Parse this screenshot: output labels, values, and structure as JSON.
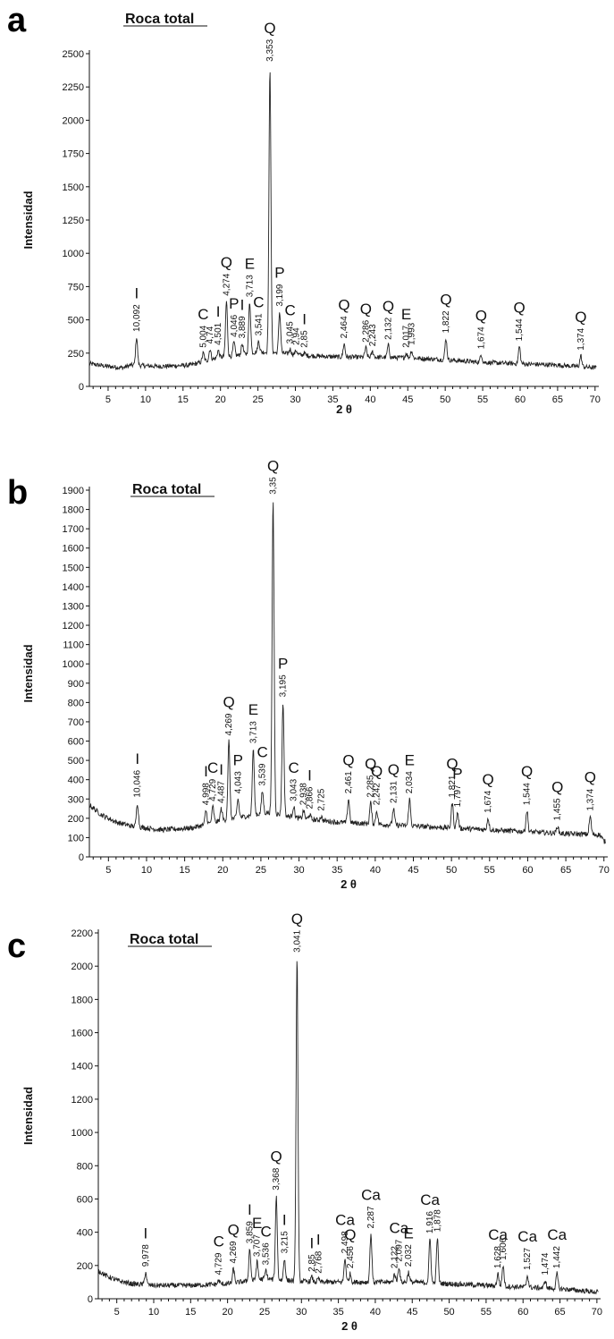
{
  "chart_data": [
    {
      "type": "line",
      "panel_label": "a",
      "title": "Roca total",
      "xlabel": "2 θ",
      "ylabel": "Intensidad",
      "xlim": [
        2.5,
        70.5
      ],
      "ylim": [
        0,
        2500
      ],
      "x_ticks": [
        5,
        10,
        15,
        20,
        25,
        30,
        35,
        40,
        45,
        50,
        55,
        60,
        65,
        70
      ],
      "y_ticks": [
        0,
        250,
        500,
        750,
        1000,
        1250,
        1500,
        1750,
        2000,
        2250,
        2500
      ],
      "baseline": [
        [
          2.5,
          170
        ],
        [
          5,
          150
        ],
        [
          7,
          140
        ],
        [
          8,
          160
        ],
        [
          12,
          150
        ],
        [
          16,
          160
        ],
        [
          18,
          190
        ],
        [
          20,
          220
        ],
        [
          22,
          230
        ],
        [
          25,
          260
        ],
        [
          28,
          250
        ],
        [
          32,
          230
        ],
        [
          36,
          220
        ],
        [
          40,
          220
        ],
        [
          45,
          215
        ],
        [
          50,
          200
        ],
        [
          55,
          180
        ],
        [
          60,
          170
        ],
        [
          65,
          160
        ],
        [
          70,
          140
        ]
      ],
      "peaks": [
        {
          "x": 8.8,
          "y": 370,
          "d": "10,092",
          "m": "I"
        },
        {
          "x": 17.7,
          "y": 250,
          "d": "5,004",
          "m": "C"
        },
        {
          "x": 18.6,
          "y": 280,
          "d": "4,74",
          "m": ""
        },
        {
          "x": 19.7,
          "y": 270,
          "d": "4,501",
          "m": "I"
        },
        {
          "x": 20.8,
          "y": 640,
          "d": "4,274",
          "m": "Q"
        },
        {
          "x": 21.8,
          "y": 330,
          "d": "4,046",
          "m": "P"
        },
        {
          "x": 22.9,
          "y": 320,
          "d": "3,889",
          "m": "I"
        },
        {
          "x": 23.9,
          "y": 630,
          "d": "3,713",
          "m": "E"
        },
        {
          "x": 25.1,
          "y": 340,
          "d": "3,541",
          "m": "C"
        },
        {
          "x": 26.6,
          "y": 2400,
          "d": "3,353",
          "m": "Q"
        },
        {
          "x": 27.9,
          "y": 560,
          "d": "3,199",
          "m": "P"
        },
        {
          "x": 29.3,
          "y": 280,
          "d": "3,045",
          "m": "C"
        },
        {
          "x": 30.1,
          "y": 270,
          "d": "2,94",
          "m": ""
        },
        {
          "x": 31.2,
          "y": 250,
          "d": "2,85",
          "m": "I"
        },
        {
          "x": 36.5,
          "y": 320,
          "d": "2,464",
          "m": "Q"
        },
        {
          "x": 39.4,
          "y": 290,
          "d": "2,286",
          "m": "Q"
        },
        {
          "x": 40.3,
          "y": 260,
          "d": "2,243",
          "m": ""
        },
        {
          "x": 42.4,
          "y": 310,
          "d": "2,132",
          "m": "Q"
        },
        {
          "x": 44.8,
          "y": 250,
          "d": "2,017",
          "m": "E"
        },
        {
          "x": 45.5,
          "y": 270,
          "d": "1,993",
          "m": ""
        },
        {
          "x": 50.1,
          "y": 360,
          "d": "1,822",
          "m": "Q"
        },
        {
          "x": 54.8,
          "y": 240,
          "d": "1,674",
          "m": "Q"
        },
        {
          "x": 59.9,
          "y": 300,
          "d": "1,544",
          "m": "Q"
        },
        {
          "x": 68.1,
          "y": 230,
          "d": "1,374",
          "m": "Q"
        }
      ]
    },
    {
      "type": "line",
      "panel_label": "b",
      "title": "Roca total",
      "xlabel": "2 θ",
      "ylabel": "Intensidad",
      "xlim": [
        2.5,
        70.5
      ],
      "ylim": [
        0,
        1900
      ],
      "x_ticks": [
        5,
        10,
        15,
        20,
        25,
        30,
        35,
        40,
        45,
        50,
        55,
        60,
        65,
        70
      ],
      "y_ticks": [
        0,
        100,
        200,
        300,
        400,
        500,
        600,
        700,
        800,
        900,
        1000,
        1100,
        1200,
        1300,
        1400,
        1500,
        1600,
        1700,
        1800,
        1900
      ],
      "baseline": [
        [
          2.5,
          270
        ],
        [
          4,
          220
        ],
        [
          6,
          180
        ],
        [
          8,
          160
        ],
        [
          12,
          140
        ],
        [
          16,
          150
        ],
        [
          18,
          170
        ],
        [
          20,
          190
        ],
        [
          23,
          210
        ],
        [
          26,
          230
        ],
        [
          30,
          200
        ],
        [
          35,
          180
        ],
        [
          40,
          170
        ],
        [
          45,
          160
        ],
        [
          50,
          150
        ],
        [
          55,
          140
        ],
        [
          60,
          130
        ],
        [
          65,
          120
        ],
        [
          69.5,
          115
        ],
        [
          70,
          80
        ]
      ],
      "peaks": [
        {
          "x": 8.8,
          "y": 280,
          "d": "10,046",
          "m": "I"
        },
        {
          "x": 17.8,
          "y": 240,
          "d": "4,998",
          "m": "I"
        },
        {
          "x": 18.7,
          "y": 260,
          "d": "4,729",
          "m": "C"
        },
        {
          "x": 19.8,
          "y": 250,
          "d": "4,487",
          "m": "I"
        },
        {
          "x": 20.8,
          "y": 600,
          "d": "4,269",
          "m": "Q"
        },
        {
          "x": 22.0,
          "y": 300,
          "d": "4,043",
          "m": "P"
        },
        {
          "x": 24.0,
          "y": 560,
          "d": "3,713",
          "m": "E"
        },
        {
          "x": 25.2,
          "y": 340,
          "d": "3,539",
          "m": "C"
        },
        {
          "x": 26.6,
          "y": 1850,
          "d": "3,35",
          "m": "Q"
        },
        {
          "x": 27.9,
          "y": 800,
          "d": "3,195",
          "m": "P"
        },
        {
          "x": 29.3,
          "y": 260,
          "d": "3,043",
          "m": "C"
        },
        {
          "x": 30.6,
          "y": 240,
          "d": "2,938",
          "m": ""
        },
        {
          "x": 31.4,
          "y": 220,
          "d": "2,866",
          "m": "I"
        },
        {
          "x": 32.9,
          "y": 210,
          "d": "2,725",
          "m": ""
        },
        {
          "x": 36.5,
          "y": 300,
          "d": "2,461",
          "m": "Q"
        },
        {
          "x": 39.4,
          "y": 280,
          "d": "2,285",
          "m": "Q"
        },
        {
          "x": 40.2,
          "y": 240,
          "d": "2,242",
          "m": "Q"
        },
        {
          "x": 42.4,
          "y": 250,
          "d": "2,131",
          "m": "Q"
        },
        {
          "x": 44.5,
          "y": 300,
          "d": "2,034",
          "m": "E"
        },
        {
          "x": 50.1,
          "y": 280,
          "d": "1,821",
          "m": "Q"
        },
        {
          "x": 50.8,
          "y": 230,
          "d": "1,797",
          "m": "P"
        },
        {
          "x": 54.8,
          "y": 200,
          "d": "1,674",
          "m": "Q"
        },
        {
          "x": 59.9,
          "y": 240,
          "d": "1,544",
          "m": "Q"
        },
        {
          "x": 63.9,
          "y": 160,
          "d": "1,455",
          "m": "Q"
        },
        {
          "x": 68.2,
          "y": 210,
          "d": "1,374",
          "m": "Q"
        }
      ]
    },
    {
      "type": "line",
      "panel_label": "c",
      "title": "Roca total",
      "xlabel": "2 θ",
      "ylabel": "Intensidad",
      "xlim": [
        2.5,
        70.5
      ],
      "ylim": [
        0,
        2200
      ],
      "x_ticks": [
        5,
        10,
        15,
        20,
        25,
        30,
        35,
        40,
        45,
        50,
        55,
        60,
        65,
        70
      ],
      "y_ticks": [
        0,
        200,
        400,
        600,
        800,
        1000,
        1200,
        1400,
        1600,
        1800,
        2000,
        2200
      ],
      "baseline": [
        [
          2.5,
          170
        ],
        [
          3.5,
          140
        ],
        [
          5,
          110
        ],
        [
          7,
          90
        ],
        [
          10,
          80
        ],
        [
          15,
          80
        ],
        [
          20,
          90
        ],
        [
          25,
          120
        ],
        [
          28,
          110
        ],
        [
          32,
          100
        ],
        [
          36,
          100
        ],
        [
          40,
          100
        ],
        [
          45,
          100
        ],
        [
          50,
          90
        ],
        [
          55,
          80
        ],
        [
          60,
          70
        ],
        [
          65,
          60
        ],
        [
          70,
          40
        ]
      ],
      "peaks": [
        {
          "x": 8.9,
          "y": 160,
          "d": "9,978",
          "m": "I"
        },
        {
          "x": 18.8,
          "y": 110,
          "d": "4,729",
          "m": "C"
        },
        {
          "x": 20.8,
          "y": 180,
          "d": "4,269",
          "m": "Q"
        },
        {
          "x": 23.0,
          "y": 300,
          "d": "3,859",
          "m": "I"
        },
        {
          "x": 24.0,
          "y": 220,
          "d": "3,707",
          "m": "E"
        },
        {
          "x": 25.2,
          "y": 170,
          "d": "3,536",
          "m": "C"
        },
        {
          "x": 26.6,
          "y": 620,
          "d": "3,368",
          "m": "Q"
        },
        {
          "x": 27.7,
          "y": 240,
          "d": "3,215",
          "m": "I"
        },
        {
          "x": 29.4,
          "y": 2050,
          "d": "3,041",
          "m": "Q"
        },
        {
          "x": 31.4,
          "y": 130,
          "d": "2,85",
          "m": "I"
        },
        {
          "x": 32.3,
          "y": 120,
          "d": "2,768",
          "m": "I"
        },
        {
          "x": 35.9,
          "y": 240,
          "d": "2,498",
          "m": "Ca"
        },
        {
          "x": 36.6,
          "y": 150,
          "d": "2,456",
          "m": "Q"
        },
        {
          "x": 39.4,
          "y": 390,
          "d": "2,287",
          "m": "Ca"
        },
        {
          "x": 42.6,
          "y": 150,
          "d": "2,122",
          "m": ""
        },
        {
          "x": 43.2,
          "y": 190,
          "d": "2,097",
          "m": "Ca"
        },
        {
          "x": 44.5,
          "y": 160,
          "d": "2,032",
          "m": "E"
        },
        {
          "x": 47.4,
          "y": 360,
          "d": "1,916",
          "m": "Ca"
        },
        {
          "x": 48.4,
          "y": 370,
          "d": "1,878",
          "m": ""
        },
        {
          "x": 56.6,
          "y": 150,
          "d": "1,628",
          "m": "Ca"
        },
        {
          "x": 57.3,
          "y": 200,
          "d": "1,606",
          "m": ""
        },
        {
          "x": 60.6,
          "y": 140,
          "d": "1,527",
          "m": "Ca"
        },
        {
          "x": 63.0,
          "y": 110,
          "d": "1,474",
          "m": ""
        },
        {
          "x": 64.6,
          "y": 150,
          "d": "1,442",
          "m": "Ca"
        }
      ]
    }
  ]
}
